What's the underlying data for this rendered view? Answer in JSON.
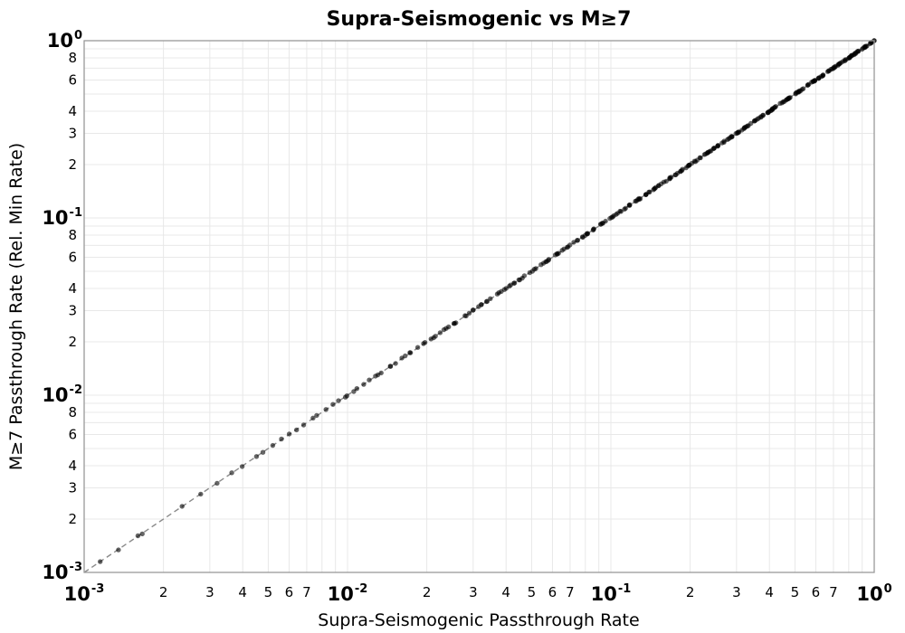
{
  "chart_data": {
    "type": "scatter",
    "title": "Supra-Seismogenic vs M≥7",
    "xlabel": "Supra-Seismogenic Passthrough Rate",
    "ylabel": "M≥7 Passthrough Rate (Rel. Min Rate)",
    "xscale": "log",
    "yscale": "log",
    "xlim": [
      0.001,
      1.0
    ],
    "ylim": [
      0.001,
      1.0
    ],
    "major_tick_base": "10",
    "major_tick_exponents": [
      -3,
      -2,
      -1,
      0
    ],
    "x_minor_tick_labels": [
      2,
      3,
      4,
      5,
      6,
      7
    ],
    "y_minor_tick_labels": [
      2,
      3,
      4,
      6,
      8
    ],
    "grid": {
      "show_minor": true,
      "color": "#e8e8e8"
    },
    "spine_color": "#999999",
    "background": "#ffffff",
    "text_color": "#000000",
    "minor_tick_color": "#3a3a3a",
    "legend": "none",
    "reference_line": {
      "type": "identity y = x",
      "color": "#8a8a8a",
      "dash": [
        6,
        4
      ],
      "width": 1.4
    },
    "marker": {
      "shape": "circle",
      "color": "#000000",
      "opacity": 0.6,
      "radius_px": 2.7
    },
    "relation": "data points lie on the 1:1 line (y ≈ x) across all three decades",
    "density": "point density increases toward (1,1): solid black band above x ≈ 0.1, clustered points 0.01–0.1, sparse isolated gray points below 0.01",
    "n_points": 300,
    "generator": {
      "seed": 7,
      "density_exponent": 0.4,
      "jitter_log_x": 0.012,
      "jitter_log_y": 0.0035
    },
    "anchor_points": [
      [
        0.00115,
        0.00115
      ],
      [
        0.00135,
        0.00134
      ],
      [
        0.0016,
        0.00161
      ],
      [
        1.0,
        1.0
      ]
    ]
  }
}
